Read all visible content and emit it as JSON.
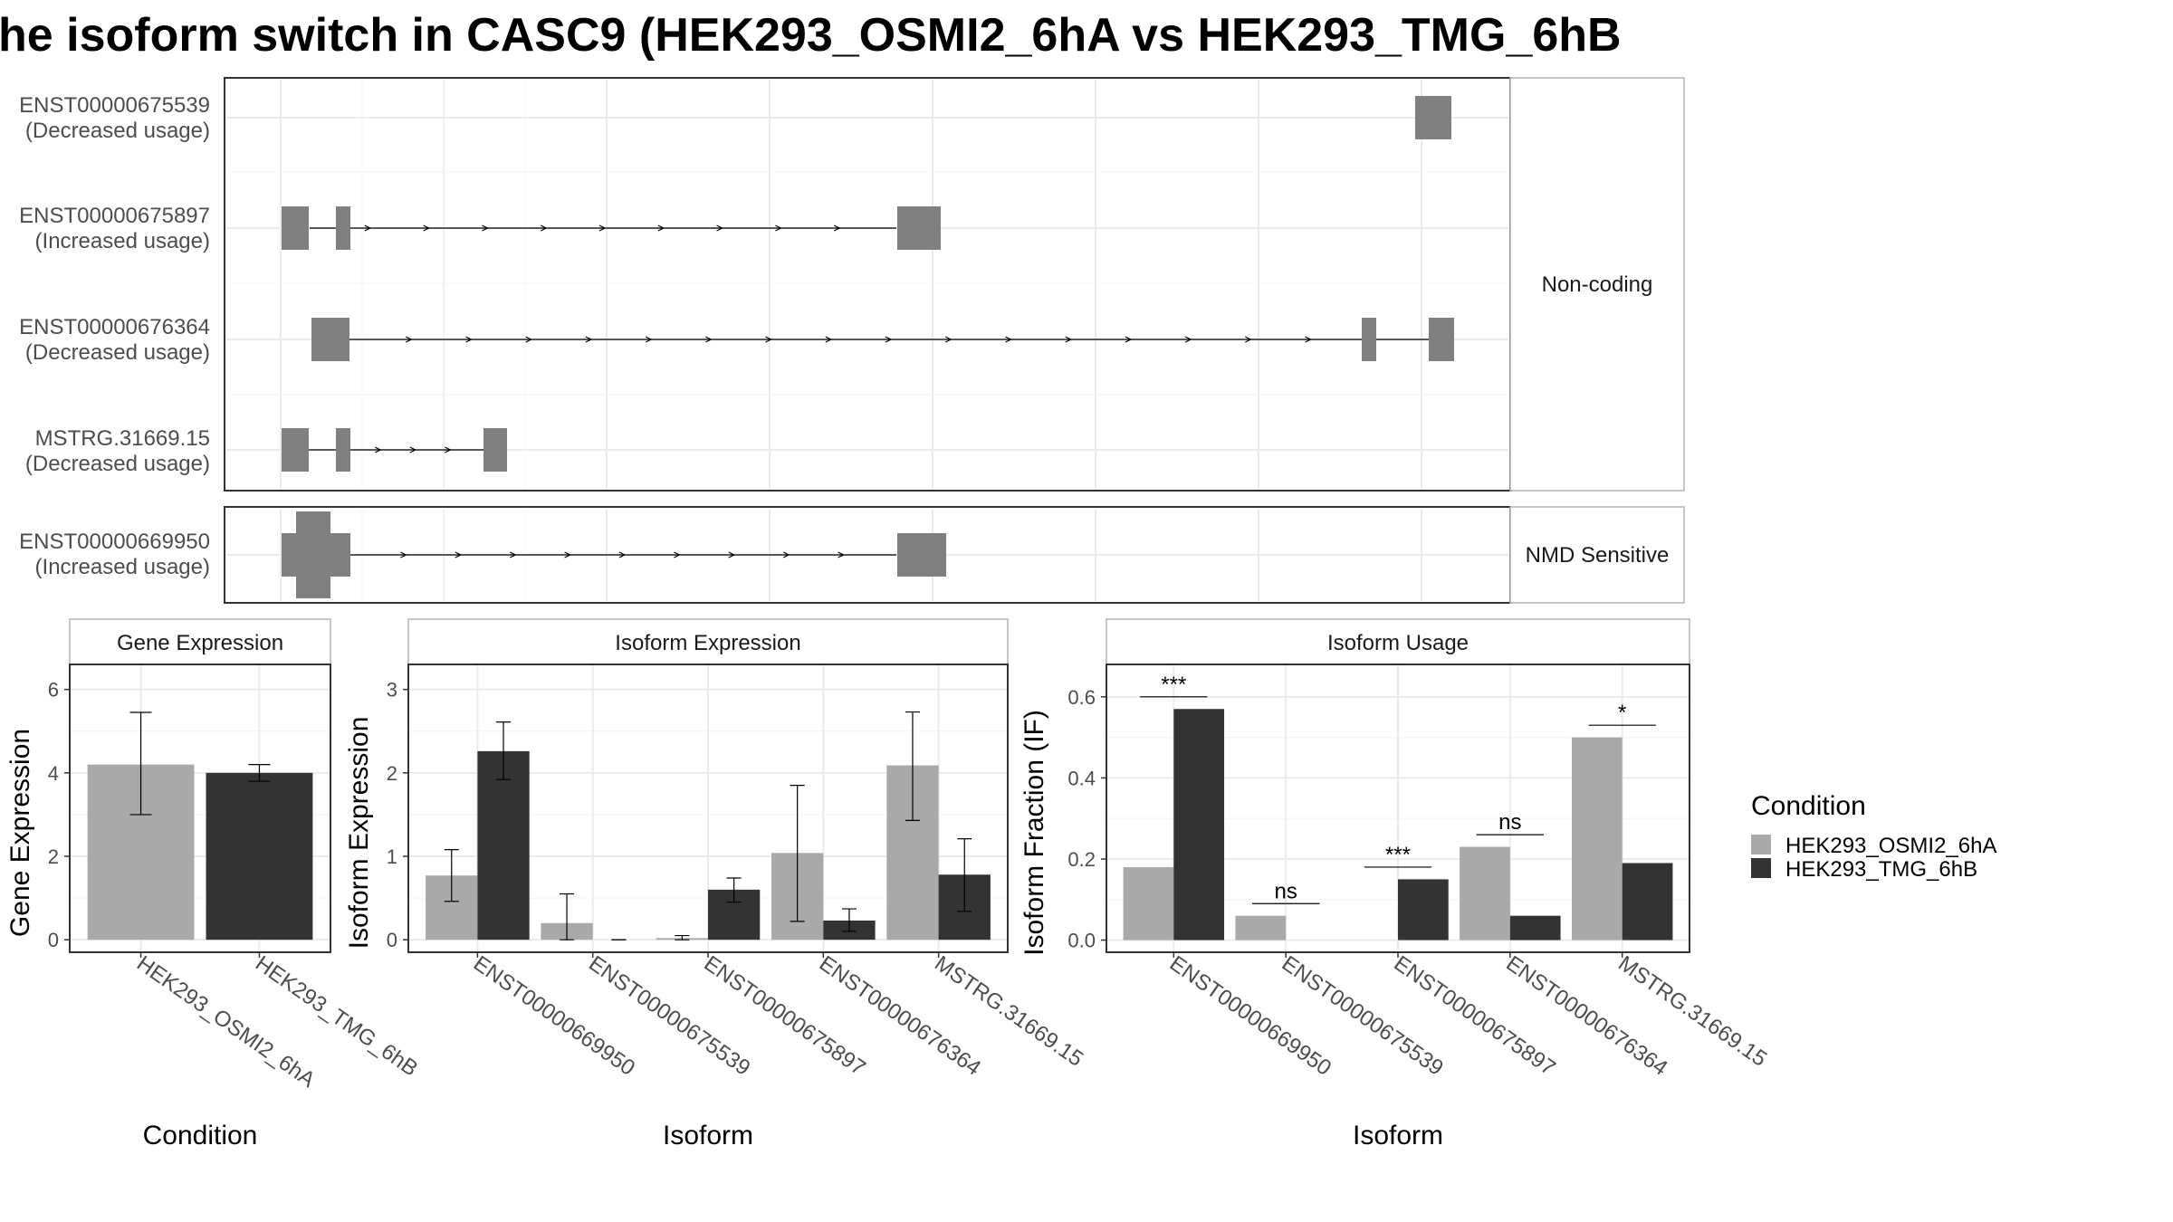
{
  "title": "he isoform switch in CASC9 (HEK293_OSMI2_6hA vs HEK293_TMG_6hB",
  "colors": {
    "condition_a": "#a9a9a9",
    "condition_b": "#333333",
    "structure": "#808080",
    "grid": "#ebebeb",
    "strip_bg": "#ffffff",
    "panel_border": "#333333"
  },
  "structure_panel": {
    "groups": [
      {
        "label": "Non-coding",
        "transcripts": [
          {
            "id": "ENST00000675539",
            "usage": "(Decreased usage)"
          },
          {
            "id": "ENST00000675897",
            "usage": "(Increased usage)"
          },
          {
            "id": "ENST00000676364",
            "usage": "(Decreased usage)"
          },
          {
            "id": "MSTRG.31669.15",
            "usage": "(Decreased usage)"
          }
        ]
      },
      {
        "label": "NMD Sensitive",
        "transcripts": [
          {
            "id": "ENST00000669950",
            "usage": "(Increased usage)"
          }
        ]
      }
    ]
  },
  "chart_data": [
    {
      "type": "bar",
      "title": "Gene Expression",
      "xlabel": "Condition",
      "ylabel": "Gene Expression",
      "categories": [
        "HEK293_OSMI2_6hA",
        "HEK293_TMG_6hB"
      ],
      "values": [
        4.2,
        4.0
      ],
      "error_low": [
        3.0,
        3.8
      ],
      "error_high": [
        5.45,
        4.2
      ],
      "ylim": [
        -0.3,
        6.6
      ],
      "yticks": [
        0,
        2,
        4,
        6
      ],
      "grid": true
    },
    {
      "type": "bar",
      "title": "Isoform Expression",
      "xlabel": "Isoform",
      "ylabel": "Isoform Expression",
      "categories": [
        "ENST00000669950",
        "ENST00000675539",
        "ENST00000675897",
        "ENST00000676364",
        "MSTRG.31669.15"
      ],
      "series": [
        {
          "name": "HEK293_OSMI2_6hA",
          "values": [
            0.77,
            0.2,
            0.02,
            1.04,
            2.09
          ],
          "error_low": [
            0.46,
            0.0,
            0.0,
            0.22,
            1.43
          ],
          "error_high": [
            1.08,
            0.55,
            0.05,
            1.85,
            2.73
          ]
        },
        {
          "name": "HEK293_TMG_6hB",
          "values": [
            2.26,
            0.0,
            0.6,
            0.23,
            0.78
          ],
          "error_low": [
            1.92,
            0.0,
            0.45,
            0.1,
            0.34
          ],
          "error_high": [
            2.61,
            0.0,
            0.74,
            0.37,
            1.21
          ]
        }
      ],
      "ylim": [
        -0.15,
        3.3
      ],
      "yticks": [
        0,
        1,
        2,
        3
      ],
      "grid": true
    },
    {
      "type": "bar",
      "title": "Isoform Usage",
      "xlabel": "Isoform",
      "ylabel": "Isoform Fraction (IF)",
      "categories": [
        "ENST00000669950",
        "ENST00000675539",
        "ENST00000675897",
        "ENST00000676364",
        "MSTRG.31669.15"
      ],
      "series": [
        {
          "name": "HEK293_OSMI2_6hA",
          "values": [
            0.18,
            0.06,
            0.0,
            0.23,
            0.5
          ]
        },
        {
          "name": "HEK293_TMG_6hB",
          "values": [
            0.57,
            0.0,
            0.15,
            0.06,
            0.19
          ]
        }
      ],
      "significance": [
        {
          "category": "ENST00000669950",
          "label": "***",
          "y": 0.6
        },
        {
          "category": "ENST00000675539",
          "label": "ns",
          "y": 0.09
        },
        {
          "category": "ENST00000675897",
          "label": "***",
          "y": 0.18
        },
        {
          "category": "ENST00000676364",
          "label": "ns",
          "y": 0.26
        },
        {
          "category": "MSTRG.31669.15",
          "label": "*",
          "y": 0.53
        }
      ],
      "ylim": [
        -0.03,
        0.68
      ],
      "yticks": [
        0.0,
        0.2,
        0.4,
        0.6
      ],
      "grid": true
    }
  ],
  "legend": {
    "title": "Condition",
    "position": "right",
    "items": [
      "HEK293_OSMI2_6hA",
      "HEK293_TMG_6hB"
    ]
  }
}
